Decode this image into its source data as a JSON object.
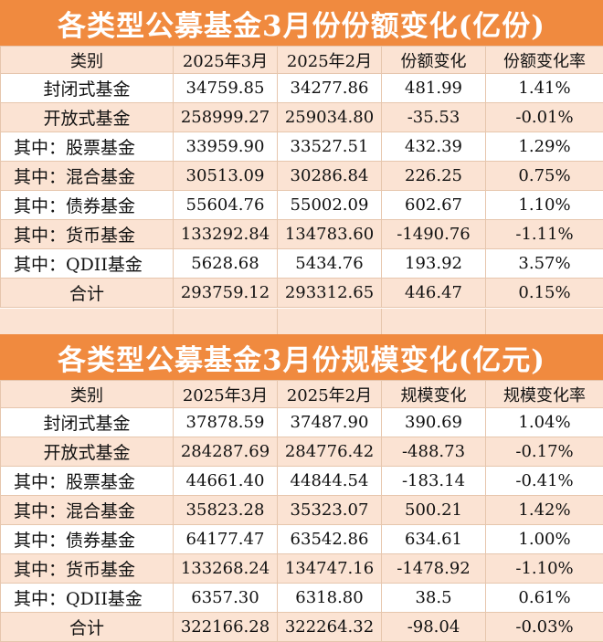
{
  "share_table": {
    "title": "各类型公募基金3月份份额变化(亿份)",
    "headers": [
      "类别",
      "2025年3月",
      "2025年2月",
      "份额变化",
      "份额变化率"
    ],
    "rows": [
      [
        "封闭式基金",
        "34759.85",
        "34277.86",
        "481.99",
        "1.41%"
      ],
      [
        "开放式基金",
        "258999.27",
        "259034.80",
        "-35.53",
        "-0.01%"
      ],
      [
        "其中：股票基金",
        "33959.90",
        "33527.51",
        "432.39",
        "1.29%"
      ],
      [
        "其中：混合基金",
        "30513.09",
        "30286.84",
        "226.25",
        "0.75%"
      ],
      [
        "其中：债券基金",
        "55604.76",
        "55002.09",
        "602.67",
        "1.10%"
      ],
      [
        "其中：货币基金",
        "133292.84",
        "134783.60",
        "-1490.76",
        "-1.11%"
      ],
      [
        "其中：QDII基金",
        "5628.68",
        "5434.76",
        "193.92",
        "3.57%"
      ],
      [
        "合计",
        "293759.12",
        "293312.65",
        "446.47",
        "0.15%"
      ]
    ]
  },
  "scale_table": {
    "title": "各类型公募基金3月份规模变化(亿元)",
    "headers": [
      "类别",
      "2025年3月",
      "2025年2月",
      "规模变化",
      "规模变化率"
    ],
    "rows": [
      [
        "封闭式基金",
        "37878.59",
        "37487.90",
        "390.69",
        "1.04%"
      ],
      [
        "开放式基金",
        "284287.69",
        "284776.42",
        "-488.73",
        "-0.17%"
      ],
      [
        "其中：股票基金",
        "44661.40",
        "44844.54",
        "-183.14",
        "-0.41%"
      ],
      [
        "其中：混合基金",
        "35823.28",
        "35323.07",
        "500.21",
        "1.42%"
      ],
      [
        "其中：债券基金",
        "64177.47",
        "63542.86",
        "634.61",
        "1.00%"
      ],
      [
        "其中：货币基金",
        "133268.24",
        "134747.16",
        "-1478.92",
        "-1.10%"
      ],
      [
        "其中：QDII基金",
        "6357.30",
        "6318.80",
        "38.5",
        "0.61%"
      ],
      [
        "合计",
        "322166.28",
        "322264.32",
        "-98.04",
        "-0.03%"
      ]
    ]
  },
  "colors": {
    "banner": "#f08a3f",
    "stripe": "#fbe3d3",
    "border": "#e6c6ad"
  }
}
